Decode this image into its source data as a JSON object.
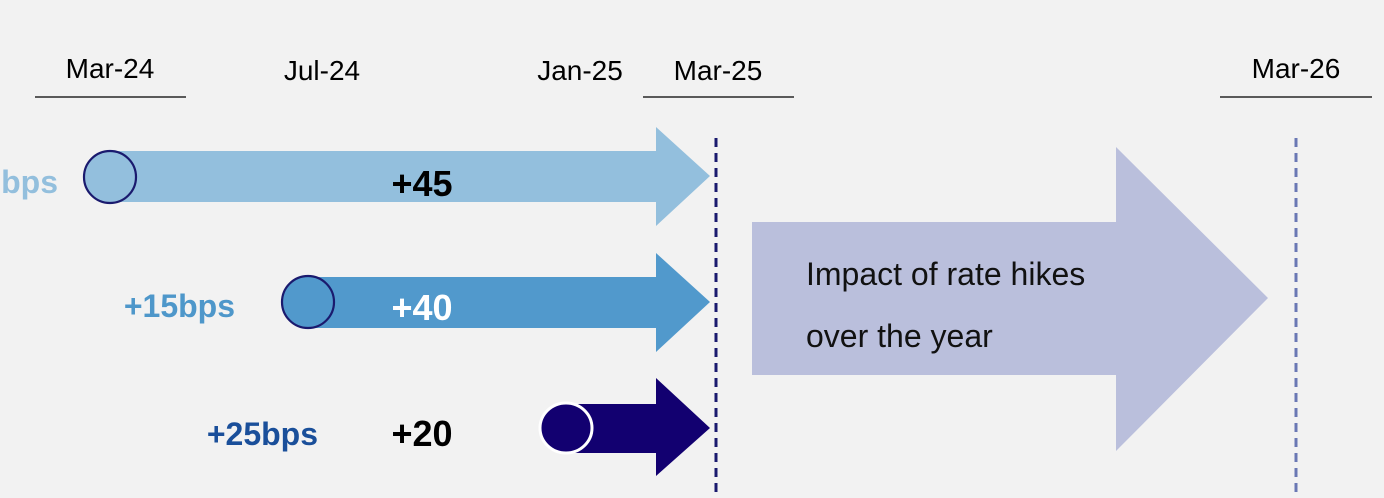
{
  "timeline": {
    "dates": [
      {
        "label": "Mar-24"
      },
      {
        "label": "Jul-24"
      },
      {
        "label": "Jan-25"
      },
      {
        "label": "Mar-25"
      },
      {
        "label": "Mar-26"
      }
    ]
  },
  "hikes": [
    {
      "bps_label": "+bps",
      "value_label": "+45",
      "color": "#93bfdd"
    },
    {
      "bps_label": "+15bps",
      "value_label": "+40",
      "color": "#5199cc"
    },
    {
      "bps_label": "+25bps",
      "value_label": "+20",
      "color": "#120070"
    }
  ],
  "bps_label_colors": [
    "#93bfdd",
    "#4e97ca",
    "#1a4f9a"
  ],
  "impact": {
    "line1": "Impact of rate hikes",
    "line2": "over the year",
    "color": "#babfdc"
  },
  "divider_colors": [
    "#1a1a6e",
    "#6a78b4"
  ]
}
